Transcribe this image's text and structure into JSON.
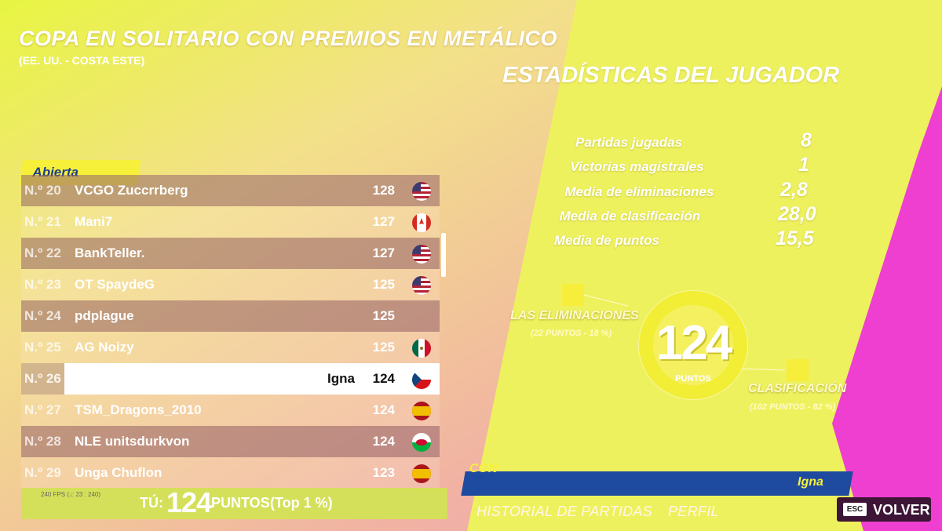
{
  "header": {
    "title": "COPA EN SOLITARIO CON PREMIOS EN METÁLICO",
    "subtitle": "(EE. UU. - COSTA ESTE)"
  },
  "leaderboard": {
    "tab": "Abierta",
    "rows": [
      {
        "rank": "N.º 20",
        "name": "VCGO Zuccrrberg",
        "points": 128
      },
      {
        "rank": "N.º 21",
        "name": "Mani7",
        "points": 127
      },
      {
        "rank": "N.º 22",
        "name": "BankTeller.",
        "points": 127
      },
      {
        "rank": "N.º 23",
        "name": "OT SpaydeG",
        "points": 125
      },
      {
        "rank": "N.º 24",
        "name": "pdplague",
        "points": 125
      },
      {
        "rank": "N.º 25",
        "name": "AG Noizy",
        "points": 125
      },
      {
        "rank": "N.º 26",
        "name": "Igna",
        "points": 124
      },
      {
        "rank": "N.º 27",
        "name": "TSM_Dragons_2010",
        "points": 124
      },
      {
        "rank": "N.º 28",
        "name": "NLE unitsdurkvon",
        "points": 124
      },
      {
        "rank": "N.º 29",
        "name": "Unga Chuflon",
        "points": 123
      }
    ],
    "fps": "240 FPS (↓: 23 : 240)",
    "footer": {
      "label": "TÚ:",
      "points": 124,
      "unit": "PUNTOS",
      "top": "(Top 1 %)"
    }
  },
  "stats": {
    "title": "ESTADÍSTICAS DEL JUGADOR",
    "rows": [
      {
        "label": "Partidas jugadas",
        "value": "8"
      },
      {
        "label": "Victorias magistrales",
        "value": "1"
      },
      {
        "label": "Media de eliminaciones",
        "value": "2,8"
      },
      {
        "label": "Media de clasificación",
        "value": "28,0"
      },
      {
        "label": "Media de puntos",
        "value": "15,5"
      }
    ],
    "total": "124",
    "total_unit": "PUNTOS",
    "eliminations": {
      "label": "LAS ELIMINACIONES",
      "detail": "(22 PUNTOS - 18 %)"
    },
    "placement": {
      "label": "CLASIFICACIÓN",
      "detail": "(102 PUNTOS - 82 %)"
    }
  },
  "bottom": {
    "tab": "CON",
    "player": "Igna",
    "links": [
      "HISTORIAL DE PARTIDAS",
      "PERFIL"
    ],
    "esc_key": "ESC",
    "back": "VOLVER"
  }
}
